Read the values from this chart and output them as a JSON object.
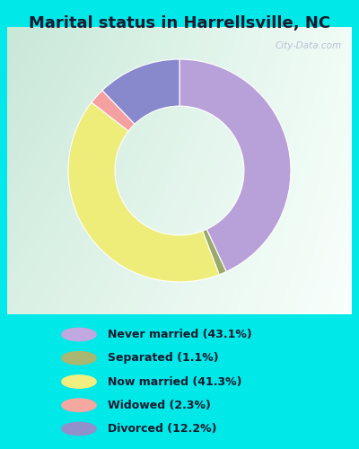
{
  "title": "Marital status in Harrellsville, NC",
  "title_fontsize": 13,
  "categories": [
    "Never married",
    "Separated",
    "Now married",
    "Widowed",
    "Divorced"
  ],
  "percentages": [
    43.1,
    1.1,
    41.3,
    2.3,
    12.2
  ],
  "colors": [
    "#b8a0d8",
    "#9aaa6a",
    "#eeed7a",
    "#f4a0a0",
    "#8888cc"
  ],
  "legend_colors": [
    "#c0a8e0",
    "#a8b870",
    "#f0ef80",
    "#f4a8a0",
    "#9090cc"
  ],
  "legend_labels": [
    "Never married (43.1%)",
    "Separated (1.1%)",
    "Now married (41.3%)",
    "Widowed (2.3%)",
    "Divorced (12.2%)"
  ],
  "bg_cyan": "#00e8e8",
  "bg_chart_top_left": "#c8e8d8",
  "bg_chart_top_right": "#e8f4ec",
  "bg_chart_bottom": "#f0f8f4",
  "watermark": "City-Data.com",
  "donut_width": 0.42,
  "start_angle": 90,
  "figsize": [
    4.0,
    5.0
  ],
  "dpi": 100,
  "title_color": "#1a1a2e",
  "legend_text_color": "#1a1a2e"
}
